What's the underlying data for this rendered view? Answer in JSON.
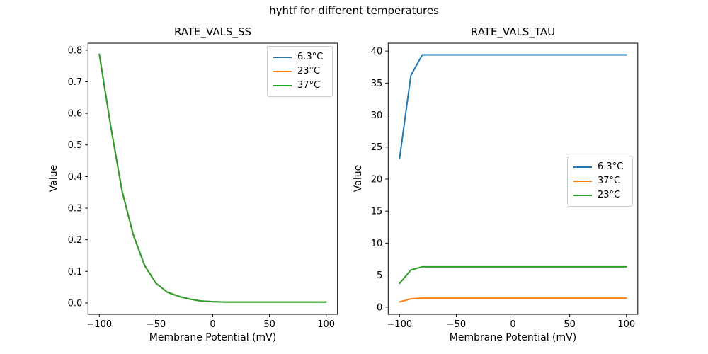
{
  "figure": {
    "suptitle": "hyhtf for different temperatures",
    "background": "#ffffff",
    "axis_color": "#000000"
  },
  "chart_data": [
    {
      "type": "line",
      "title": "RATE_VALS_SS",
      "xlabel": "Membrane Potential (mV)",
      "ylabel": "Value",
      "x": [
        -100,
        -90,
        -80,
        -70,
        -60,
        -50,
        -40,
        -30,
        -20,
        -10,
        0,
        10,
        20,
        30,
        40,
        50,
        60,
        70,
        80,
        90,
        100
      ],
      "series": [
        {
          "name": "6.3°C",
          "color": "#1f77b4",
          "values": [
            0.787,
            0.56,
            0.355,
            0.215,
            0.118,
            0.062,
            0.034,
            0.021,
            0.012,
            0.006,
            0.004,
            0.003,
            0.003,
            0.003,
            0.003,
            0.003,
            0.003,
            0.003,
            0.003,
            0.003,
            0.003
          ]
        },
        {
          "name": "23°C",
          "color": "#ff7f0e",
          "values": [
            0.787,
            0.56,
            0.355,
            0.215,
            0.118,
            0.062,
            0.034,
            0.021,
            0.012,
            0.006,
            0.004,
            0.003,
            0.003,
            0.003,
            0.003,
            0.003,
            0.003,
            0.003,
            0.003,
            0.003,
            0.003
          ]
        },
        {
          "name": "37°C",
          "color": "#2ca02c",
          "values": [
            0.787,
            0.56,
            0.355,
            0.215,
            0.118,
            0.062,
            0.034,
            0.021,
            0.012,
            0.006,
            0.004,
            0.003,
            0.003,
            0.003,
            0.003,
            0.003,
            0.003,
            0.003,
            0.003,
            0.003,
            0.003
          ]
        }
      ],
      "xlim": [
        -110,
        110
      ],
      "ylim": [
        -0.036,
        0.822
      ],
      "xticks": [
        -100,
        -50,
        0,
        50,
        100
      ],
      "xtick_labels": [
        "−100",
        "−50",
        "0",
        "50",
        "100"
      ],
      "yticks": [
        0.0,
        0.1,
        0.2,
        0.3,
        0.4,
        0.5,
        0.6,
        0.7,
        0.8
      ],
      "ytick_labels": [
        "0.0",
        "0.1",
        "0.2",
        "0.3",
        "0.4",
        "0.5",
        "0.6",
        "0.7",
        "0.8"
      ],
      "grid": false,
      "legend": {
        "position": "upper right",
        "entries": [
          {
            "label": "6.3°C",
            "color": "#1f77b4"
          },
          {
            "label": "23°C",
            "color": "#ff7f0e"
          },
          {
            "label": "37°C",
            "color": "#2ca02c"
          }
        ]
      }
    },
    {
      "type": "line",
      "title": "RATE_VALS_TAU",
      "xlabel": "Membrane Potential (mV)",
      "ylabel": "Value",
      "x": [
        -100,
        -90,
        -80,
        -70,
        -60,
        -50,
        -40,
        -30,
        -20,
        -10,
        0,
        10,
        20,
        30,
        40,
        50,
        60,
        70,
        80,
        90,
        100
      ],
      "series": [
        {
          "name": "6.3°C",
          "color": "#1f77b4",
          "values": [
            23.2,
            36.2,
            39.4,
            39.4,
            39.4,
            39.4,
            39.4,
            39.4,
            39.4,
            39.4,
            39.4,
            39.4,
            39.4,
            39.4,
            39.4,
            39.4,
            39.4,
            39.4,
            39.4,
            39.4,
            39.4
          ]
        },
        {
          "name": "37°C",
          "color": "#ff7f0e",
          "values": [
            0.8,
            1.3,
            1.4,
            1.4,
            1.4,
            1.4,
            1.4,
            1.4,
            1.4,
            1.4,
            1.4,
            1.4,
            1.4,
            1.4,
            1.4,
            1.4,
            1.4,
            1.4,
            1.4,
            1.4,
            1.4
          ]
        },
        {
          "name": "23°C",
          "color": "#2ca02c",
          "values": [
            3.7,
            5.8,
            6.3,
            6.3,
            6.3,
            6.3,
            6.3,
            6.3,
            6.3,
            6.3,
            6.3,
            6.3,
            6.3,
            6.3,
            6.3,
            6.3,
            6.3,
            6.3,
            6.3,
            6.3,
            6.3
          ]
        }
      ],
      "xlim": [
        -110,
        110
      ],
      "ylim": [
        -1.13,
        41.23
      ],
      "xticks": [
        -100,
        -50,
        0,
        50,
        100
      ],
      "xtick_labels": [
        "−100",
        "−50",
        "0",
        "50",
        "100"
      ],
      "yticks": [
        0,
        5,
        10,
        15,
        20,
        25,
        30,
        35,
        40
      ],
      "ytick_labels": [
        "0",
        "5",
        "10",
        "15",
        "20",
        "25",
        "30",
        "35",
        "40"
      ],
      "grid": false,
      "legend": {
        "position": "center right",
        "entries": [
          {
            "label": "6.3°C",
            "color": "#1f77b4"
          },
          {
            "label": "37°C",
            "color": "#ff7f0e"
          },
          {
            "label": "23°C",
            "color": "#2ca02c"
          }
        ]
      }
    }
  ]
}
